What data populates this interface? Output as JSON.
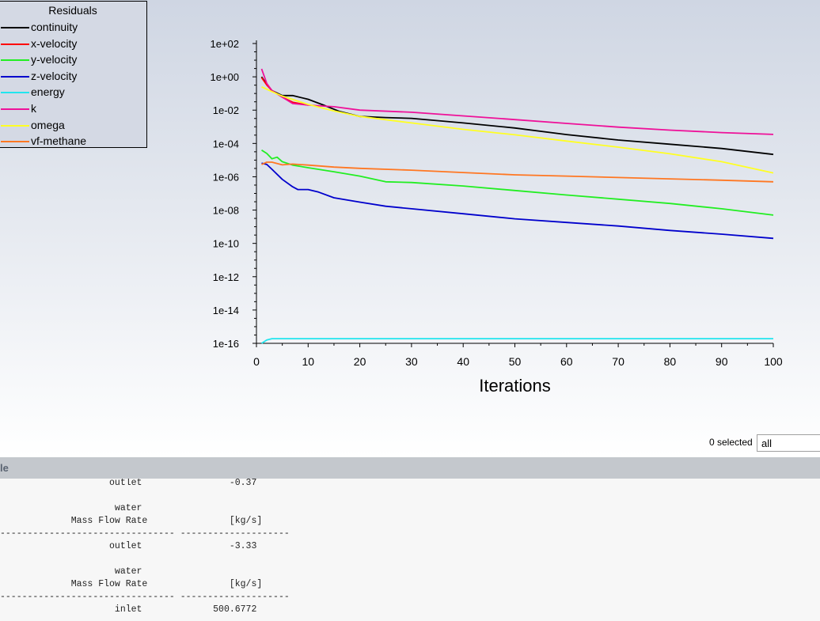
{
  "legend": {
    "title": "Residuals",
    "items": [
      {
        "label": "continuity",
        "color": "#000000"
      },
      {
        "label": "x-velocity",
        "color": "#ff0000"
      },
      {
        "label": "y-velocity",
        "color": "#22ee22"
      },
      {
        "label": "z-velocity",
        "color": "#0000cc"
      },
      {
        "label": "energy",
        "color": "#22e5ee"
      },
      {
        "label": "k",
        "color": "#ee1199"
      },
      {
        "label": "omega",
        "color": "#ffff22"
      },
      {
        "label": "vf-methane",
        "color": "#ff7722"
      }
    ]
  },
  "chart_data": {
    "type": "line",
    "title": "Residuals",
    "xlabel": "Iterations",
    "ylabel": "",
    "xlim": [
      0,
      100
    ],
    "ylim": [
      1e-16,
      100.0
    ],
    "y_scale": "log",
    "x_ticks": [
      "0",
      "10",
      "20",
      "30",
      "40",
      "50",
      "60",
      "70",
      "80",
      "90",
      "100"
    ],
    "y_ticks": [
      "1e+02",
      "1e+00",
      "1e-02",
      "1e-04",
      "1e-06",
      "1e-08",
      "1e-10",
      "1e-12",
      "1e-14",
      "1e-16"
    ],
    "legend_position": "top-left",
    "series": [
      {
        "name": "continuity",
        "color": "#000000",
        "x": [
          1,
          2,
          3,
          5,
          7,
          10,
          13,
          16,
          20,
          25,
          30,
          40,
          50,
          60,
          70,
          80,
          90,
          100
        ],
        "y": [
          1,
          0.35,
          0.15,
          0.075,
          0.075,
          0.045,
          0.02,
          0.0085,
          0.0042,
          0.0036,
          0.0032,
          0.0017,
          0.00085,
          0.00034,
          0.00016,
          9e-05,
          5e-05,
          2.2e-05
        ]
      },
      {
        "name": "x-velocity",
        "color": "#ff0000",
        "x": [
          1,
          2,
          3,
          5,
          7,
          10
        ],
        "y": [
          0.9,
          0.32,
          0.15,
          0.06,
          0.03,
          0.02
        ]
      },
      {
        "name": "y-velocity",
        "color": "#22ee22",
        "x": [
          1,
          2,
          3,
          4,
          5,
          7,
          10,
          15,
          20,
          25,
          30,
          40,
          50,
          60,
          70,
          80,
          90,
          100
        ],
        "y": [
          4e-05,
          2.5e-05,
          1.2e-05,
          1.5e-05,
          8e-06,
          5e-06,
          3.5e-06,
          2e-06,
          1.1e-06,
          5e-07,
          4.5e-07,
          2.8e-07,
          1.5e-07,
          8e-08,
          4.5e-08,
          2.5e-08,
          1.2e-08,
          5e-09
        ]
      },
      {
        "name": "z-velocity",
        "color": "#0000cc",
        "x": [
          1,
          2,
          3,
          5,
          7,
          8,
          10,
          12,
          15,
          20,
          25,
          30,
          40,
          50,
          60,
          70,
          80,
          90,
          100
        ],
        "y": [
          6.5e-06,
          5.5e-06,
          2.8e-06,
          7e-07,
          2.5e-07,
          1.7e-07,
          1.7e-07,
          1.2e-07,
          5.5e-08,
          3e-08,
          1.7e-08,
          1.2e-08,
          6e-09,
          3e-09,
          1.8e-09,
          1.1e-09,
          6e-10,
          3.6e-10,
          2e-10
        ]
      },
      {
        "name": "energy",
        "color": "#22e5ee",
        "x": [
          1,
          2,
          3,
          10,
          20,
          30,
          40,
          50,
          60,
          70,
          80,
          90,
          100
        ],
        "y": [
          1e-16,
          1.6e-16,
          1.9e-16,
          1.9e-16,
          1.9e-16,
          1.9e-16,
          1.9e-16,
          1.9e-16,
          1.9e-16,
          1.9e-16,
          1.9e-16,
          1.9e-16,
          1.9e-16
        ]
      },
      {
        "name": "k",
        "color": "#ee1199",
        "x": [
          1,
          2,
          3,
          5,
          7,
          10,
          15,
          20,
          30,
          40,
          50,
          60,
          70,
          80,
          90,
          100
        ],
        "y": [
          3,
          0.4,
          0.15,
          0.06,
          0.025,
          0.02,
          0.016,
          0.01,
          0.0075,
          0.0045,
          0.0027,
          0.0016,
          0.00095,
          0.00063,
          0.00045,
          0.00035
        ]
      },
      {
        "name": "omega",
        "color": "#ffff22",
        "x": [
          1,
          3,
          5,
          10,
          15,
          20,
          30,
          40,
          50,
          60,
          70,
          80,
          90,
          100
        ],
        "y": [
          0.25,
          0.13,
          0.07,
          0.022,
          0.009,
          0.0042,
          0.0017,
          0.0007,
          0.00033,
          0.00014,
          6e-05,
          2.4e-05,
          8e-06,
          1.7e-06
        ]
      },
      {
        "name": "vf-methane",
        "color": "#ff7722",
        "x": [
          1,
          2,
          3,
          5,
          7,
          10,
          15,
          20,
          30,
          40,
          50,
          60,
          70,
          80,
          90,
          100
        ],
        "y": [
          5.5e-06,
          7.5e-06,
          7.5e-06,
          5.2e-06,
          5.8e-06,
          5e-06,
          3.8e-06,
          3.2e-06,
          2.5e-06,
          1.8e-06,
          1.3e-06,
          1.1e-06,
          9e-07,
          7.5e-07,
          6.2e-07,
          5e-07
        ]
      }
    ]
  },
  "selection": {
    "count_label": "0 selected",
    "filter_value": "all"
  },
  "console": {
    "title": "le",
    "lines": [
      "                    outlet                -0.37",
      "",
      "                     water",
      "             Mass Flow Rate               [kg/s]",
      "-------------------------------- --------------------",
      "                    outlet                -3.33",
      "",
      "                     water",
      "             Mass Flow Rate               [kg/s]",
      "-------------------------------- --------------------",
      "                     inlet             500.6772"
    ]
  }
}
